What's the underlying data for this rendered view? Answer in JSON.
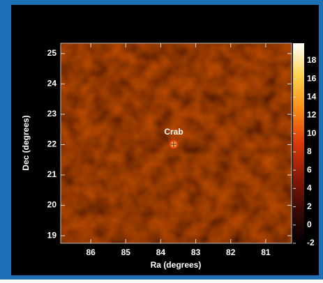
{
  "chart_data": {
    "type": "skymap",
    "xlabel": "Ra (degrees)",
    "ylabel": "Dec (degrees)",
    "xlim": [
      86.86,
      80.26
    ],
    "xticks": [
      86,
      85,
      84,
      83,
      82,
      81
    ],
    "ylim": [
      18.75,
      25.34
    ],
    "yticks": [
      19,
      20,
      21,
      22,
      23,
      24,
      25
    ],
    "clim": [
      -2,
      19.9
    ],
    "cticks": [
      -2,
      0,
      2,
      4,
      6,
      8,
      10,
      12,
      14,
      16,
      18
    ],
    "colormap": [
      "#000000",
      "#3a0a04",
      "#8a1a08",
      "#d83a0a",
      "#f78a1a",
      "#fcd04a",
      "#ffffff"
    ],
    "sources": [
      {
        "name": "Crab",
        "x": 83.63,
        "y": 22.01,
        "value": 19
      }
    ]
  }
}
